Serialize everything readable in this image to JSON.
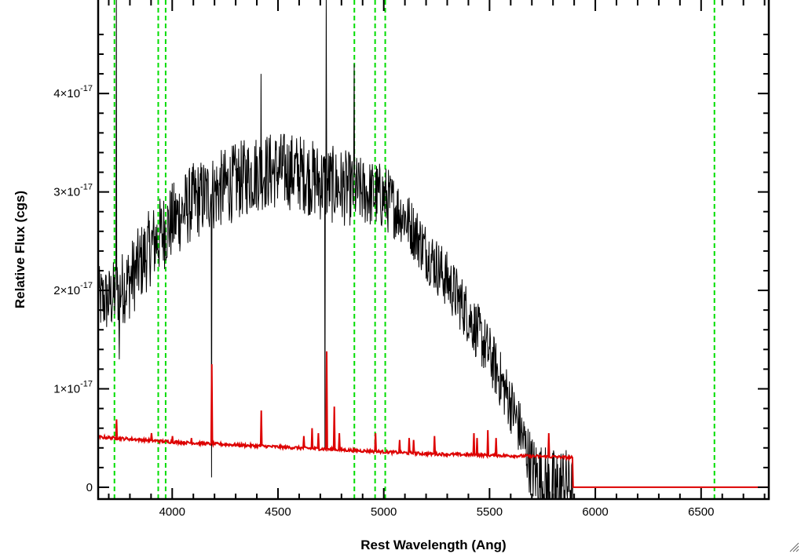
{
  "chart_data": {
    "type": "line",
    "xlabel": "Rest Wavelength (Ang)",
    "ylabel": "Relative Flux (cgs)",
    "xlim": [
      3650,
      6820
    ],
    "ylim": [
      -1.2e-18,
      4.95e-17
    ],
    "x_ticks": [
      {
        "value": 4000,
        "label": "4000"
      },
      {
        "value": 4500,
        "label": "4500"
      },
      {
        "value": 5000,
        "label": "5000"
      },
      {
        "value": 5500,
        "label": "5500"
      },
      {
        "value": 6000,
        "label": "6000"
      },
      {
        "value": 6500,
        "label": "6500"
      }
    ],
    "y_ticks": [
      {
        "value": 0,
        "mantissa": "0",
        "exponent": ""
      },
      {
        "value": 1e-17,
        "mantissa": "1×10",
        "exponent": "-17"
      },
      {
        "value": 2e-17,
        "mantissa": "2×10",
        "exponent": "-17"
      },
      {
        "value": 3e-17,
        "mantissa": "3×10",
        "exponent": "-17"
      },
      {
        "value": 4e-17,
        "mantissa": "4×10",
        "exponent": "-17"
      }
    ],
    "grid": false,
    "legend": "none",
    "line_markers": {
      "color": "#00dd00",
      "style": "dashed",
      "x": [
        3727,
        3934,
        3969,
        4861,
        4959,
        5007,
        6563
      ]
    },
    "series": [
      {
        "color": "#000000",
        "continuum": {
          "x": [
            3650,
            3700,
            3800,
            3900,
            4000,
            4100,
            4200,
            4300,
            4400,
            4500,
            4600,
            4700,
            4800,
            4900,
            5000,
            5100,
            5200,
            5300,
            5400,
            5500,
            5600,
            5650,
            5700,
            5750,
            5800,
            5850,
            5890,
            5900,
            6820
          ],
          "y": [
            1.9e-17,
            1.9e-17,
            2.1e-17,
            2.45e-17,
            2.7e-17,
            2.9e-17,
            3e-17,
            3.1e-17,
            3.2e-17,
            3.22e-17,
            3.2e-17,
            3.1e-17,
            3.05e-17,
            3e-17,
            2.95e-17,
            2.75e-17,
            2.4e-17,
            2.1e-17,
            1.75e-17,
            1.35e-17,
            8.5e-18,
            5.5e-18,
            2e-18,
            5e-19,
            -5e-19,
            5e-19,
            0.0,
            0.0,
            0.0
          ],
          "noise": [
            3.5e-18,
            3.5e-18,
            4e-18,
            4e-18,
            4e-18,
            4e-18,
            4e-18,
            4e-18,
            4e-18,
            4e-18,
            4e-18,
            4e-18,
            4e-18,
            3.5e-18,
            3.5e-18,
            3e-18,
            3e-18,
            3e-18,
            3e-18,
            3e-18,
            3e-18,
            3e-18,
            3.5e-18,
            4e-18,
            4.5e-18,
            4e-18,
            3e-18,
            0.0,
            0.0
          ]
        },
        "features": [
          {
            "x": 3735,
            "y": 5e-17
          },
          {
            "x": 3750,
            "y": 1.3e-17
          },
          {
            "x": 4185,
            "y": 1e-18
          },
          {
            "x": 4420,
            "y": 4.2e-17
          },
          {
            "x": 4722,
            "y": 4e-18
          },
          {
            "x": 4728,
            "y": 5e-17
          },
          {
            "x": 4860,
            "y": 4.3e-17
          },
          {
            "x": 5815,
            "y": -2e-18
          }
        ]
      },
      {
        "color": "#dd0000",
        "continuum": {
          "x": [
            3650,
            3800,
            4000,
            4200,
            4400,
            4600,
            4800,
            5000,
            5200,
            5400,
            5600,
            5800,
            5890,
            5895,
            6820
          ],
          "y": [
            5.1e-18,
            4.9e-18,
            4.6e-18,
            4.4e-18,
            4.2e-18,
            4e-18,
            3.8e-18,
            3.6e-18,
            3.4e-18,
            3.3e-18,
            3.2e-18,
            3.1e-18,
            3e-18,
            0.0,
            0.0
          ]
        },
        "spikes": [
          {
            "x": 3735,
            "y": 6.9e-18
          },
          {
            "x": 3900,
            "y": 5.5e-18
          },
          {
            "x": 4000,
            "y": 5.2e-18
          },
          {
            "x": 4090,
            "y": 5e-18
          },
          {
            "x": 4185,
            "y": 1.25e-17
          },
          {
            "x": 4420,
            "y": 7.8e-18
          },
          {
            "x": 4620,
            "y": 5.2e-18
          },
          {
            "x": 4660,
            "y": 6e-18
          },
          {
            "x": 4690,
            "y": 5.5e-18
          },
          {
            "x": 4728,
            "y": 1.38e-17
          },
          {
            "x": 4765,
            "y": 8.2e-18
          },
          {
            "x": 4790,
            "y": 5.5e-18
          },
          {
            "x": 4960,
            "y": 5.5e-18
          },
          {
            "x": 5075,
            "y": 4.8e-18
          },
          {
            "x": 5120,
            "y": 5e-18
          },
          {
            "x": 5140,
            "y": 4.8e-18
          },
          {
            "x": 5240,
            "y": 5.2e-18
          },
          {
            "x": 5425,
            "y": 5.5e-18
          },
          {
            "x": 5440,
            "y": 5e-18
          },
          {
            "x": 5490,
            "y": 5.8e-18
          },
          {
            "x": 5530,
            "y": 5e-18
          },
          {
            "x": 5780,
            "y": 5.5e-18
          }
        ]
      }
    ]
  }
}
